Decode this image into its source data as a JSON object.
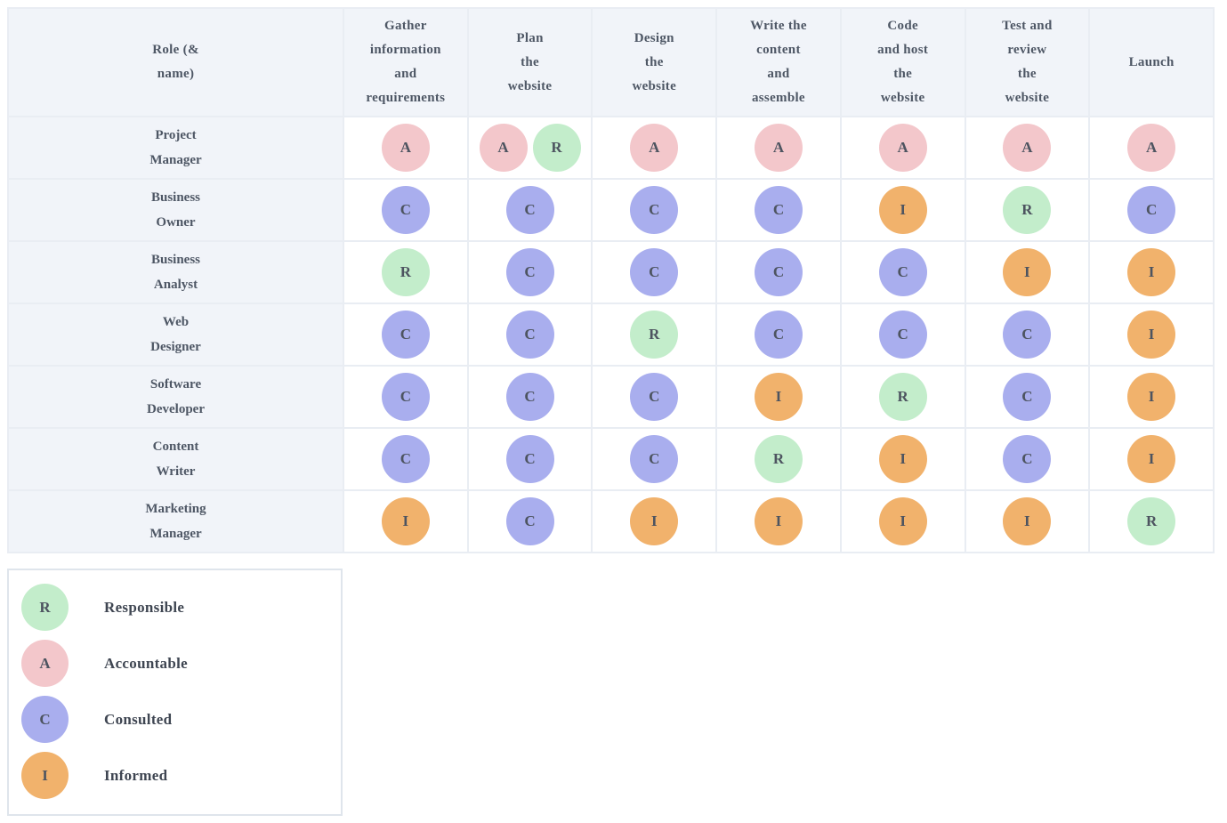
{
  "colors": {
    "R": "#c3edcb",
    "A": "#f3c7cb",
    "C": "#a9aeee",
    "I": "#f1b26c",
    "letter": "#4d5460",
    "header_bg": "#f1f4f9",
    "grid": "#e9edf3"
  },
  "matrix": {
    "corner_label": "Role (&\nname)",
    "columns": [
      "Gather\ninformation\nand\nrequirements",
      "Plan\nthe\nwebsite",
      "Design\nthe\nwebsite",
      "Write the\ncontent\nand\nassemble",
      "Code\nand host\nthe\nwebsite",
      "Test and\nreview\nthe\nwebsite",
      "Launch"
    ],
    "rows": [
      {
        "role": "Project\nManager",
        "cells": [
          [
            "A"
          ],
          [
            "A",
            "R"
          ],
          [
            "A"
          ],
          [
            "A"
          ],
          [
            "A"
          ],
          [
            "A"
          ],
          [
            "A"
          ]
        ]
      },
      {
        "role": "Business\nOwner",
        "cells": [
          [
            "C"
          ],
          [
            "C"
          ],
          [
            "C"
          ],
          [
            "C"
          ],
          [
            "I"
          ],
          [
            "R"
          ],
          [
            "C"
          ]
        ]
      },
      {
        "role": "Business\nAnalyst",
        "cells": [
          [
            "R"
          ],
          [
            "C"
          ],
          [
            "C"
          ],
          [
            "C"
          ],
          [
            "C"
          ],
          [
            "I"
          ],
          [
            "I"
          ]
        ]
      },
      {
        "role": "Web\nDesigner",
        "cells": [
          [
            "C"
          ],
          [
            "C"
          ],
          [
            "R"
          ],
          [
            "C"
          ],
          [
            "C"
          ],
          [
            "C"
          ],
          [
            "I"
          ]
        ]
      },
      {
        "role": "Software\nDeveloper",
        "cells": [
          [
            "C"
          ],
          [
            "C"
          ],
          [
            "C"
          ],
          [
            "I"
          ],
          [
            "R"
          ],
          [
            "C"
          ],
          [
            "I"
          ]
        ]
      },
      {
        "role": "Content\nWriter",
        "cells": [
          [
            "C"
          ],
          [
            "C"
          ],
          [
            "C"
          ],
          [
            "R"
          ],
          [
            "I"
          ],
          [
            "C"
          ],
          [
            "I"
          ]
        ]
      },
      {
        "role": "Marketing\nManager",
        "cells": [
          [
            "I"
          ],
          [
            "C"
          ],
          [
            "I"
          ],
          [
            "I"
          ],
          [
            "I"
          ],
          [
            "I"
          ],
          [
            "R"
          ]
        ]
      }
    ]
  },
  "legend": {
    "items": [
      {
        "code": "R",
        "label": "Responsible"
      },
      {
        "code": "A",
        "label": "Accountable"
      },
      {
        "code": "C",
        "label": "Consulted"
      },
      {
        "code": "I",
        "label": "Informed"
      }
    ]
  }
}
